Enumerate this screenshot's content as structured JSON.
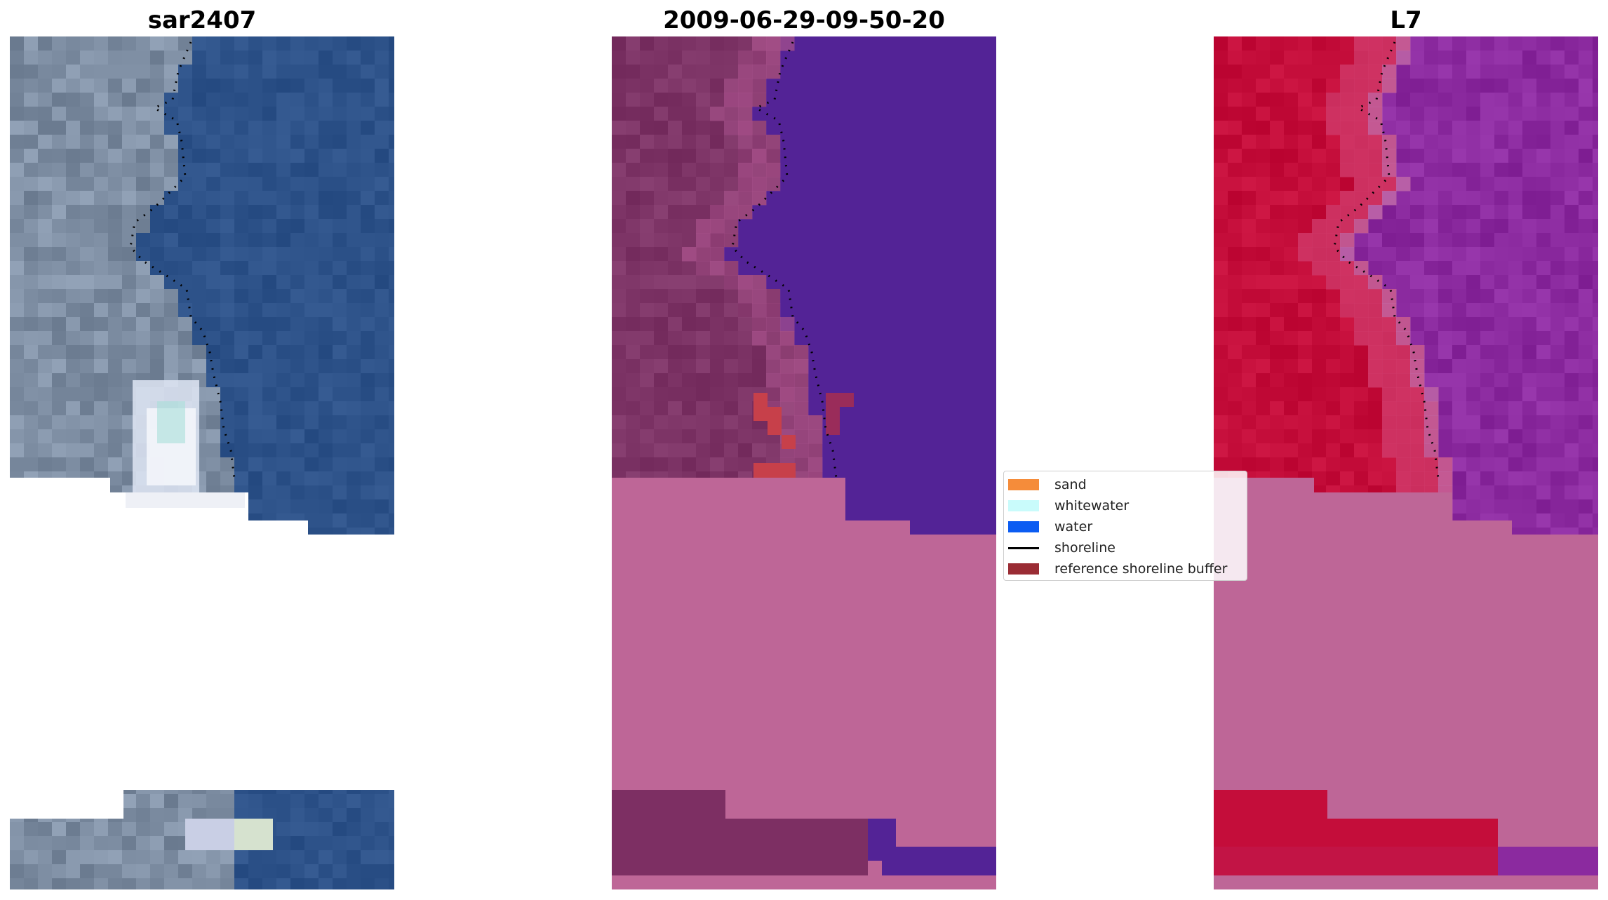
{
  "panels": [
    {
      "id": "rgb",
      "title": "sar2407"
    },
    {
      "id": "classified",
      "title": "2009-06-29-09-50-20"
    },
    {
      "id": "index",
      "title": "L7"
    }
  ],
  "legend": {
    "items": [
      {
        "label": "sand",
        "color": "#f58c3a",
        "kind": "patch"
      },
      {
        "label": "whitewater",
        "color": "#c9fbfb",
        "kind": "patch"
      },
      {
        "label": "water",
        "color": "#0b5cf2",
        "kind": "patch"
      },
      {
        "label": "shoreline",
        "color": "#000000",
        "kind": "line"
      },
      {
        "label": "reference shoreline buffer",
        "color": "#9a2c34",
        "kind": "patch"
      }
    ]
  },
  "colors": {
    "rgb_land": "#7e8ea3",
    "rgb_water": "#2d5289",
    "rgb_surf": "#c9d2e8",
    "classified_land": "#7d3466",
    "classified_water": "#532396",
    "classified_buffer": "#c7404a",
    "index_land": "#c40d3a",
    "index_water": "#8b2a9f",
    "nodata_overlay": "#be6697"
  }
}
